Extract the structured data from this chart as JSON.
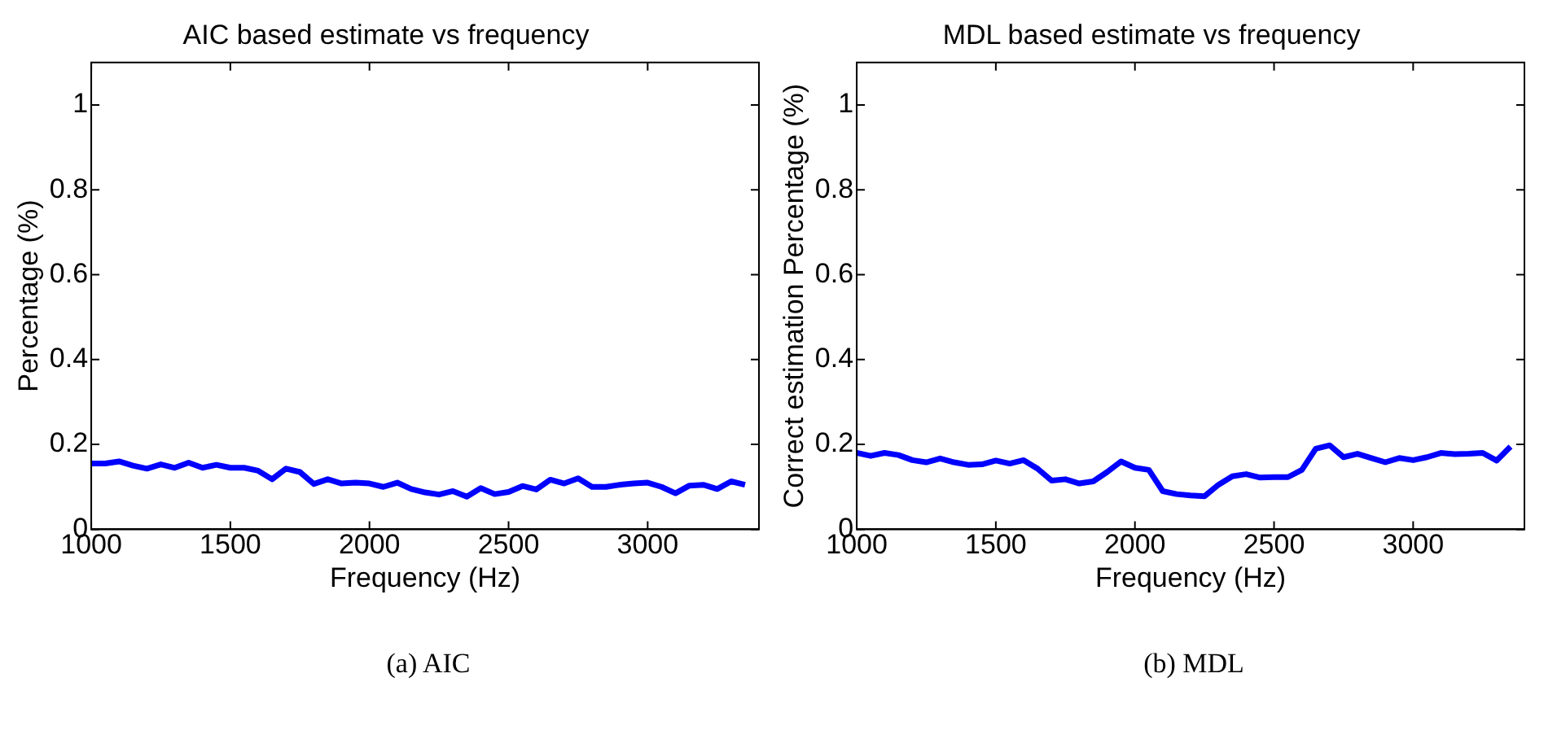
{
  "chart_data": [
    {
      "type": "line",
      "title": "AIC based estimate vs frequency",
      "xlabel": "Frequency (Hz)",
      "ylabel": "Percentage (%)",
      "annotations": [
        "(a)  AIC"
      ],
      "x": [
        1000,
        1050,
        1100,
        1150,
        1200,
        1250,
        1300,
        1350,
        1400,
        1450,
        1500,
        1550,
        1600,
        1650,
        1700,
        1750,
        1800,
        1850,
        1900,
        1950,
        2000,
        2050,
        2100,
        2150,
        2200,
        2250,
        2300,
        2350,
        2400,
        2450,
        2500,
        2550,
        2600,
        2650,
        2700,
        2750,
        2800,
        2850,
        2900,
        2950,
        3000,
        3050,
        3100,
        3150,
        3200,
        3250,
        3300,
        3350
      ],
      "series": [
        {
          "color": "#0000ff",
          "values": [
            0.155,
            0.155,
            0.16,
            0.15,
            0.143,
            0.153,
            0.145,
            0.157,
            0.145,
            0.152,
            0.145,
            0.145,
            0.138,
            0.118,
            0.143,
            0.135,
            0.107,
            0.118,
            0.108,
            0.11,
            0.108,
            0.1,
            0.11,
            0.095,
            0.087,
            0.082,
            0.09,
            0.077,
            0.097,
            0.083,
            0.088,
            0.102,
            0.094,
            0.117,
            0.108,
            0.12,
            0.1,
            0.1,
            0.105,
            0.108,
            0.11,
            0.1,
            0.085,
            0.103,
            0.105,
            0.095,
            0.113,
            0.105
          ]
        }
      ],
      "xlim": [
        1000,
        3400
      ],
      "xticks": [
        1000,
        1500,
        2000,
        2500,
        3000
      ],
      "ylim": [
        0,
        1.1
      ],
      "yticks": [
        0,
        0.2,
        0.4,
        0.6,
        0.8,
        1
      ],
      "grid": false,
      "legend": false,
      "marker": "none",
      "line_style": "solid"
    },
    {
      "type": "line",
      "title": "MDL based estimate vs frequency",
      "xlabel": "Frequency (Hz)",
      "ylabel": "Correct estimation Percentage (%)",
      "annotations": [
        "(b)  MDL"
      ],
      "x": [
        1000,
        1050,
        1100,
        1150,
        1200,
        1250,
        1300,
        1350,
        1400,
        1450,
        1500,
        1550,
        1600,
        1650,
        1700,
        1750,
        1800,
        1850,
        1900,
        1950,
        2000,
        2050,
        2100,
        2150,
        2200,
        2250,
        2300,
        2350,
        2400,
        2450,
        2500,
        2550,
        2600,
        2650,
        2700,
        2750,
        2800,
        2850,
        2900,
        2950,
        3000,
        3050,
        3100,
        3150,
        3200,
        3250,
        3300,
        3350
      ],
      "series": [
        {
          "color": "#0000ff",
          "values": [
            0.18,
            0.173,
            0.18,
            0.175,
            0.163,
            0.158,
            0.167,
            0.158,
            0.152,
            0.153,
            0.162,
            0.155,
            0.163,
            0.143,
            0.115,
            0.118,
            0.108,
            0.113,
            0.135,
            0.16,
            0.145,
            0.14,
            0.09,
            0.083,
            0.08,
            0.078,
            0.105,
            0.125,
            0.13,
            0.122,
            0.123,
            0.123,
            0.14,
            0.19,
            0.198,
            0.17,
            0.178,
            0.168,
            0.158,
            0.168,
            0.163,
            0.17,
            0.18,
            0.177,
            0.178,
            0.18,
            0.162,
            0.195
          ]
        }
      ],
      "xlim": [
        1000,
        3400
      ],
      "xticks": [
        1000,
        1500,
        2000,
        2500,
        3000
      ],
      "ylim": [
        0,
        1.1
      ],
      "yticks": [
        0,
        0.2,
        0.4,
        0.6,
        0.8,
        1
      ],
      "grid": false,
      "legend": false,
      "marker": "none",
      "line_style": "solid"
    }
  ]
}
